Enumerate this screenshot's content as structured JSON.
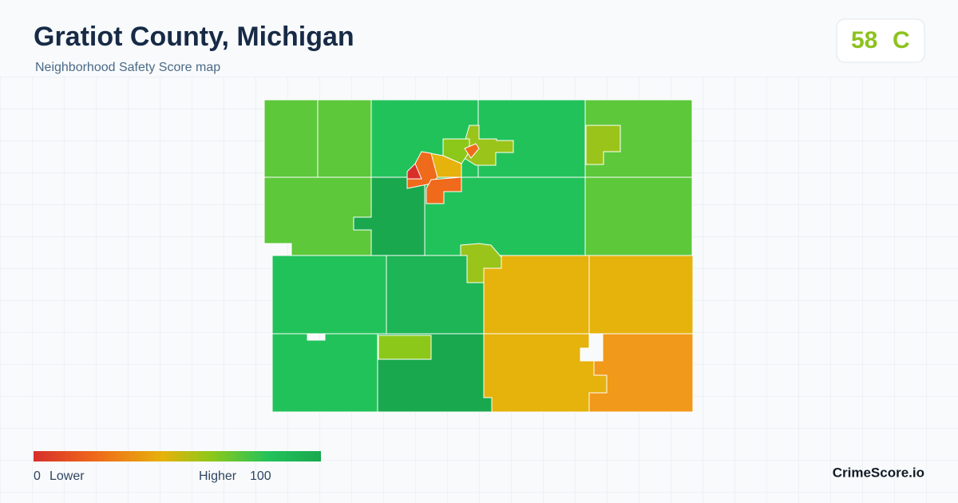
{
  "header": {
    "title": "Gratiot County, Michigan",
    "subtitle": "Neighborhood Safety Score map"
  },
  "score": {
    "value": 58,
    "grade": "C"
  },
  "legend": {
    "min": 0,
    "min_label": "Lower",
    "max_label": "Higher",
    "max": 100
  },
  "brand": "CrimeScore.io"
}
